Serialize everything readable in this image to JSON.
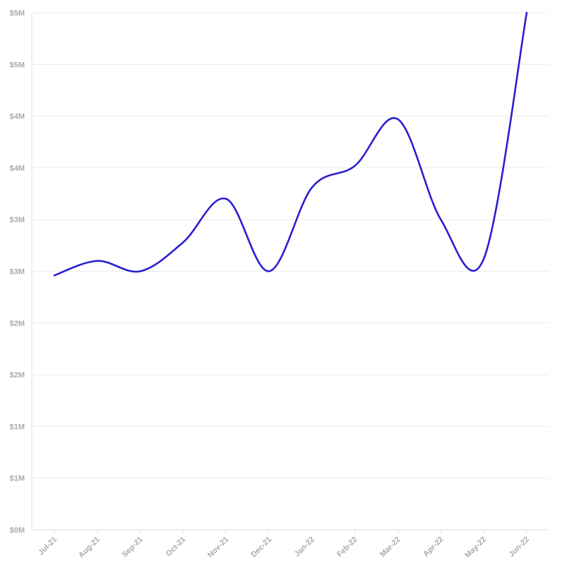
{
  "chart_data": {
    "type": "line",
    "title": "",
    "xlabel": "",
    "ylabel": "",
    "categories": [
      "Jul-21",
      "Aug-21",
      "Sep-21",
      "Oct-21",
      "Nov-21",
      "Dec-21",
      "Jan-22",
      "Feb-22",
      "Mar-22",
      "Apr-22",
      "May-22",
      "Jun-22"
    ],
    "series": [
      {
        "values": [
          2.46,
          2.6,
          2.5,
          2.78,
          3.2,
          2.5,
          3.31,
          3.52,
          3.97,
          3.0,
          2.62,
          5.0
        ]
      }
    ],
    "ylim": [
      0,
      5
    ],
    "yticks": [
      0,
      0.5,
      1,
      1.5,
      2,
      2.5,
      3,
      3.5,
      4,
      4.5,
      5
    ],
    "ytick_labels": [
      "$0M",
      "$1M",
      "$1M",
      "$2M",
      "$2M",
      "$3M",
      "$3M",
      "$4M",
      "$4M",
      "$5M",
      "$5M"
    ],
    "grid": true,
    "line_color": "#2a1fd0",
    "legend": "none"
  }
}
